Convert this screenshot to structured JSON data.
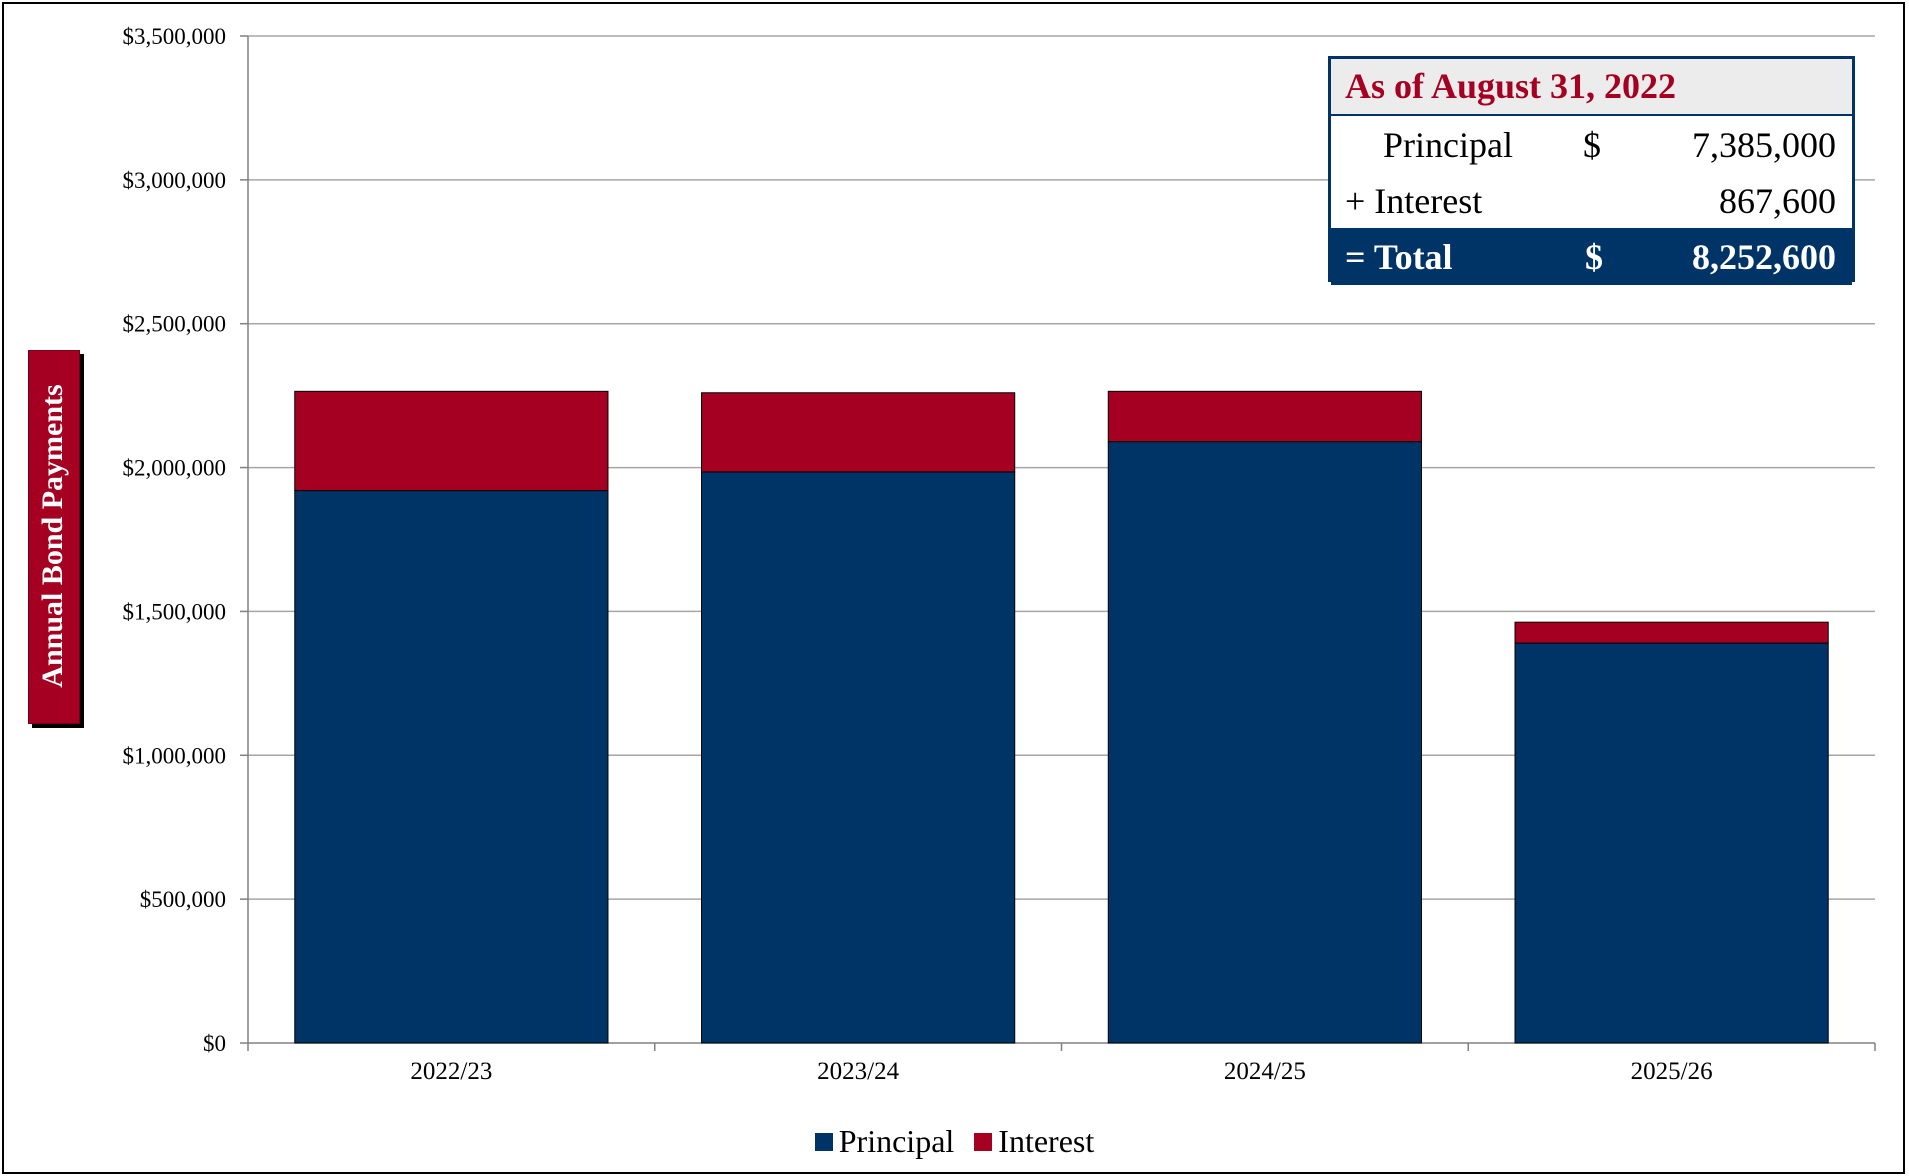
{
  "chart_data": {
    "type": "bar",
    "stacked": true,
    "categories": [
      "2022/23",
      "2023/24",
      "2024/25",
      "2025/26"
    ],
    "series": [
      {
        "name": "Principal",
        "color": "#003366",
        "values": [
          1920000,
          1985000,
          2090000,
          1390000
        ]
      },
      {
        "name": "Interest",
        "color": "#a50021",
        "values": [
          345000,
          275000,
          175000,
          72600
        ]
      }
    ],
    "ylabel": "Annual Bond Payments",
    "ylim": [
      0,
      3500000
    ],
    "yticks": [
      0,
      500000,
      1000000,
      1500000,
      2000000,
      2500000,
      3000000,
      3500000
    ],
    "ytick_labels": [
      "$0",
      "$500,000",
      "$1,000,000",
      "$1,500,000",
      "$2,000,000",
      "$2,500,000",
      "$3,000,000",
      "$3,500,000"
    ],
    "grid": true,
    "legend_position": "bottom"
  },
  "summary": {
    "title": "As of August 31, 2022",
    "rows": [
      {
        "label": "Principal",
        "currency": "$",
        "value": "7,385,000"
      },
      {
        "label": "+ Interest",
        "currency": "",
        "value": "867,600"
      }
    ],
    "total": {
      "label": "= Total",
      "currency": "$",
      "value": "8,252,600"
    }
  },
  "legend": {
    "principal_label": "Principal",
    "interest_label": "Interest"
  }
}
